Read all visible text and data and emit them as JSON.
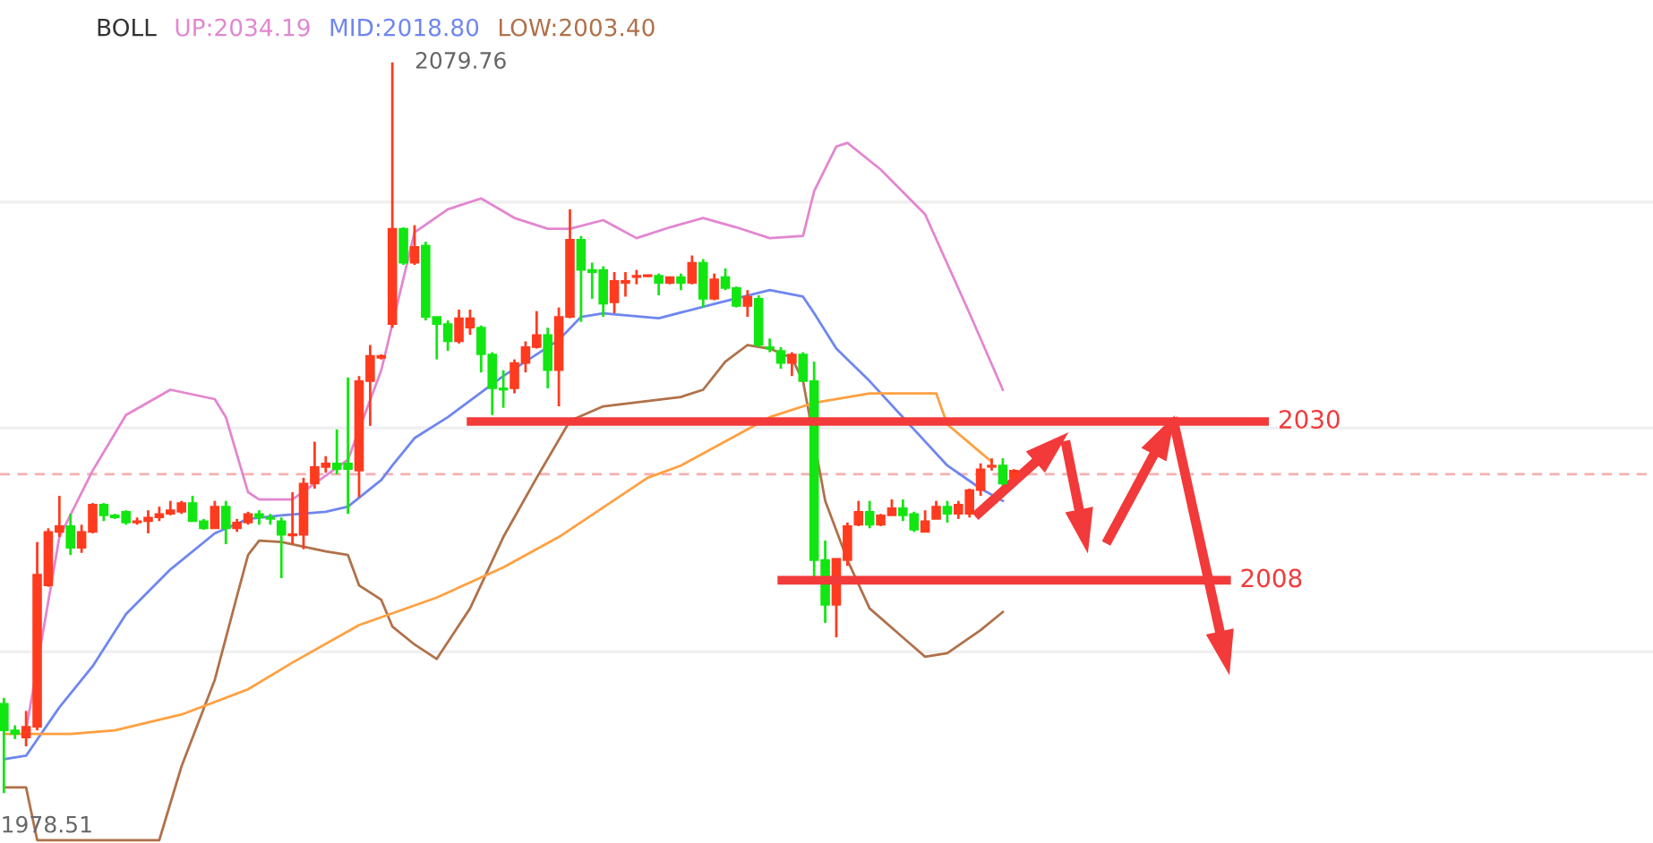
{
  "chart_data": {
    "type": "candlestick",
    "categories": [
      null,
      null,
      null,
      null,
      null,
      null,
      null,
      null,
      null,
      null,
      null,
      null,
      null,
      null,
      null,
      null,
      null,
      null,
      null,
      null,
      null,
      null,
      null,
      null,
      null,
      null,
      null,
      null,
      null,
      null,
      null,
      null,
      null,
      null,
      null,
      null,
      null,
      null,
      null,
      null,
      null,
      null,
      null,
      null,
      null,
      null,
      null,
      null,
      null,
      null,
      null,
      null,
      null,
      null,
      null,
      null,
      null,
      null,
      null,
      null,
      null,
      null,
      null,
      null,
      null,
      null,
      null,
      null,
      null,
      null,
      null,
      null,
      null,
      null,
      null,
      null,
      null,
      null,
      null,
      null,
      null,
      null,
      null,
      null,
      null,
      null,
      null,
      null,
      null,
      null,
      null,
      null
    ],
    "ohlc": [
      [
        1990.9,
        1991.7,
        1978.51,
        1987.2
      ],
      [
        1987.2,
        1987.9,
        1986.0,
        1986.7
      ],
      [
        1986.2,
        1989.9,
        1985.0,
        1987.7
      ],
      [
        1987.7,
        2013.3,
        1987.2,
        2008.8
      ],
      [
        2007.3,
        2015.2,
        2007.1,
        2014.7
      ],
      [
        2014.7,
        2019.7,
        2014.0,
        2015.5
      ],
      [
        2015.5,
        2017.2,
        2011.5,
        2012.5
      ],
      [
        2012.5,
        2015.7,
        2011.8,
        2014.7
      ],
      [
        2014.7,
        2018.7,
        2014.5,
        2018.5
      ],
      [
        2018.5,
        2018.7,
        2016.2,
        2017.0
      ],
      [
        2017.0,
        2017.2,
        2016.5,
        2016.7
      ],
      [
        2017.5,
        2017.7,
        2015.7,
        2016.0
      ],
      [
        2016.0,
        2016.7,
        2015.7,
        2016.2
      ],
      [
        2016.2,
        2017.7,
        2014.5,
        2016.7
      ],
      [
        2016.7,
        2018.2,
        2016.2,
        2017.2
      ],
      [
        2017.2,
        2019.0,
        2017.0,
        2017.7
      ],
      [
        2017.5,
        2019.0,
        2017.2,
        2018.7
      ],
      [
        2018.7,
        2019.7,
        2016.2,
        2016.2
      ],
      [
        2016.2,
        2016.5,
        2015.0,
        2015.2
      ],
      [
        2015.2,
        2019.0,
        2015.2,
        2018.2
      ],
      [
        2018.2,
        2019.0,
        2013.0,
        2015.2
      ],
      [
        2015.2,
        2016.5,
        2014.7,
        2016.0
      ],
      [
        2016.0,
        2017.5,
        2015.7,
        2017.2
      ],
      [
        2017.2,
        2017.7,
        2015.7,
        2016.7
      ],
      [
        2016.7,
        2017.2,
        2015.7,
        2016.5
      ],
      [
        2016.2,
        2016.7,
        2008.3,
        2014.3
      ],
      [
        2014.2,
        2020.2,
        2013.0,
        2014.4
      ],
      [
        2014.3,
        2022.2,
        2012.3,
        2021.4
      ],
      [
        2021.4,
        2027.2,
        2020.7,
        2023.7
      ],
      [
        2023.7,
        2025.2,
        2022.9,
        2024.2
      ],
      [
        2024.2,
        2028.9,
        2022.7,
        2023.4
      ],
      [
        2024.2,
        2036.1,
        2017.2,
        2023.4
      ],
      [
        2023.2,
        2036.3,
        2019.5,
        2035.6
      ],
      [
        2035.6,
        2040.6,
        2029.4,
        2039.1
      ],
      [
        2038.8,
        2039.3,
        2038.6,
        2039.1
      ],
      [
        2043.5,
        2079.76,
        2043.0,
        2056.7
      ],
      [
        2056.7,
        2056.9,
        2051.7,
        2052.0
      ],
      [
        2052.0,
        2057.2,
        2051.7,
        2054.2
      ],
      [
        2054.4,
        2054.9,
        2044.0,
        2044.5
      ],
      [
        2044.5,
        2044.5,
        2038.6,
        2043.5
      ],
      [
        2043.5,
        2044.0,
        2039.8,
        2041.1
      ],
      [
        2041.1,
        2045.5,
        2040.8,
        2044.3
      ],
      [
        2043.0,
        2045.5,
        2042.0,
        2044.3
      ],
      [
        2043.0,
        2043.3,
        2036.8,
        2039.3
      ],
      [
        2039.3,
        2039.6,
        2030.9,
        2034.6
      ],
      [
        2034.6,
        2037.1,
        2031.9,
        2034.4
      ],
      [
        2034.6,
        2038.6,
        2033.9,
        2038.1
      ],
      [
        2038.1,
        2041.1,
        2036.8,
        2040.3
      ],
      [
        2040.3,
        2045.3,
        2040.1,
        2042.0
      ],
      [
        2042.0,
        2043.0,
        2034.6,
        2037.1
      ],
      [
        2037.1,
        2045.8,
        2032.1,
        2044.5
      ],
      [
        2044.5,
        2059.4,
        2044.3,
        2055.2
      ],
      [
        2055.2,
        2055.7,
        2043.8,
        2051.0
      ],
      [
        2051.0,
        2052.0,
        2047.0,
        2050.7
      ],
      [
        2051.0,
        2051.5,
        2044.5,
        2046.3
      ],
      [
        2046.5,
        2050.7,
        2045.0,
        2049.5
      ],
      [
        2049.2,
        2050.7,
        2047.3,
        2049.5
      ],
      [
        2050.0,
        2051.0,
        2049.0,
        2050.2
      ],
      [
        2050.1,
        2050.3,
        2050.0,
        2050.3
      ],
      [
        2050.2,
        2050.5,
        2047.5,
        2049.2
      ],
      [
        2049.2,
        2050.0,
        2049.0,
        2050.0
      ],
      [
        2050.0,
        2050.5,
        2048.2,
        2049.2
      ],
      [
        2049.2,
        2053.0,
        2049.0,
        2052.0
      ],
      [
        2052.0,
        2052.5,
        2045.8,
        2047.0
      ],
      [
        2047.0,
        2050.5,
        2046.8,
        2049.7
      ],
      [
        2050.0,
        2051.2,
        2048.2,
        2048.5
      ],
      [
        2048.5,
        2048.7,
        2045.8,
        2046.0
      ],
      [
        2046.0,
        2048.2,
        2044.5,
        2047.3
      ],
      [
        2047.0,
        2047.5,
        2040.3,
        2040.6
      ],
      [
        2040.3,
        2041.5,
        2039.6,
        2040.1
      ],
      [
        2039.8,
        2040.3,
        2037.3,
        2038.1
      ],
      [
        2038.1,
        2039.6,
        2036.3,
        2039.3
      ],
      [
        2039.3,
        2039.6,
        2035.6,
        2035.6
      ],
      [
        2035.6,
        2038.3,
        2008.5,
        2010.8
      ],
      [
        2010.8,
        2013.5,
        2002.1,
        2004.6
      ],
      [
        2004.6,
        2011.0,
        2000.1,
        2011.0
      ],
      [
        2010.8,
        2016.0,
        2010.0,
        2015.5
      ],
      [
        2015.7,
        2019.0,
        2015.5,
        2017.5
      ],
      [
        2017.5,
        2019.0,
        2015.2,
        2015.7
      ],
      [
        2015.7,
        2017.2,
        2015.5,
        2017.0
      ],
      [
        2017.0,
        2019.2,
        2017.0,
        2018.0
      ],
      [
        2018.0,
        2019.2,
        2016.2,
        2017.0
      ],
      [
        2017.2,
        2017.5,
        2014.7,
        2015.0
      ],
      [
        2014.7,
        2017.7,
        2014.7,
        2016.2
      ],
      [
        2016.5,
        2019.0,
        2016.5,
        2018.2
      ],
      [
        2018.2,
        2019.0,
        2016.0,
        2017.2
      ],
      [
        2017.2,
        2019.0,
        2016.5,
        2018.5
      ],
      [
        2017.2,
        2020.7,
        2016.7,
        2020.5
      ],
      [
        2020.5,
        2024.2,
        2019.7,
        2023.4
      ],
      [
        2023.7,
        2024.9,
        2023.2,
        2023.9
      ],
      [
        2023.9,
        2024.9,
        2021.0,
        2021.4
      ],
      [
        2022.2,
        2023.4,
        2021.9,
        2023.2
      ]
    ],
    "colors": [
      "#12e612",
      "#12e612",
      "#ff3b1f",
      "#ff3b1f",
      "#ff3b1f",
      "#ff3b1f",
      "#12e612",
      "#ff3b1f",
      "#ff3b1f",
      "#12e612",
      "#12e612",
      "#12e612",
      "#ff3b1f",
      "#ff3b1f",
      "#ff3b1f",
      "#ff3b1f",
      "#ff3b1f",
      "#12e612",
      "#12e612",
      "#ff3b1f",
      "#12e612",
      "#ff3b1f",
      "#ff3b1f",
      "#12e612",
      "#12e612",
      "#12e612",
      "#ff3b1f",
      "#ff3b1f",
      "#ff3b1f",
      "#ff3b1f",
      "#12e612",
      "#12e612",
      "#ff3b1f",
      "#ff3b1f",
      "#ff3b1f",
      "#ff3b1f",
      "#12e612",
      "#ff3b1f",
      "#12e612",
      "#12e612",
      "#12e612",
      "#ff3b1f",
      "#ff3b1f",
      "#12e612",
      "#12e612",
      "#12e612",
      "#ff3b1f",
      "#ff3b1f",
      "#ff3b1f",
      "#12e612",
      "#ff3b1f",
      "#ff3b1f",
      "#12e612",
      "#12e612",
      "#12e612",
      "#ff3b1f",
      "#ff3b1f",
      "#ff3b1f",
      "#ff3b1f",
      "#12e612",
      "#ff3b1f",
      "#12e612",
      "#ff3b1f",
      "#12e612",
      "#ff3b1f",
      "#12e612",
      "#12e612",
      "#ff3b1f",
      "#12e612",
      "#12e612",
      "#12e612",
      "#ff3b1f",
      "#12e612",
      "#12e612",
      "#12e612",
      "#ff3b1f",
      "#ff3b1f",
      "#ff3b1f",
      "#12e612",
      "#ff3b1f",
      "#ff3b1f",
      "#12e612",
      "#12e612",
      "#ff3b1f",
      "#ff3b1f",
      "#12e612",
      "#ff3b1f",
      "#ff3b1f",
      "#ff3b1f",
      "#ff3b1f",
      "#12e612",
      "#ff3b1f"
    ],
    "series": [
      {
        "type": "line",
        "name": "UP:2034.19",
        "color": "#e386d0",
        "values": [
          null,
          null,
          1987.2,
          null,
          null,
          2014.0,
          null,
          null,
          2023.2,
          null,
          null,
          2030.9,
          null,
          null,
          null,
          2034.4,
          null,
          null,
          null,
          2033.1,
          2030.6,
          null,
          2020.2,
          2019.2,
          null,
          null,
          2019.2,
          null,
          2021.4,
          null,
          null,
          2024.7,
          null,
          null,
          2037.1,
          null,
          null,
          2056.2,
          null,
          null,
          2059.4,
          null,
          null,
          2060.9,
          null,
          null,
          2058.2,
          null,
          null,
          2056.7,
          null,
          2056.7,
          null,
          null,
          2057.9,
          null,
          null,
          2055.4,
          null,
          null,
          2056.9,
          null,
          null,
          2058.2,
          null,
          null,
          2056.9,
          null,
          null,
          2055.4,
          null,
          null,
          2055.7,
          2061.9,
          null,
          2068.1,
          2068.6,
          null,
          null,
          2064.9,
          null,
          null,
          null,
          2058.7,
          null,
          null,
          null,
          2045.0,
          null,
          null,
          2034.4,
          null
        ]
      },
      {
        "type": "line",
        "name": "MID:2018.80",
        "color": "#6f86f0",
        "values": [
          1983.2,
          null,
          1983.7,
          null,
          null,
          1990.4,
          null,
          null,
          1996.1,
          null,
          null,
          2003.3,
          null,
          null,
          null,
          2009.5,
          null,
          null,
          null,
          2014.5,
          null,
          null,
          2016.5,
          null,
          null,
          2017.0,
          null,
          null,
          null,
          2017.5,
          null,
          2018.2,
          null,
          null,
          2021.9,
          2023.9,
          null,
          2027.7,
          null,
          null,
          2030.6,
          null,
          null,
          null,
          null,
          2036.3,
          null,
          null,
          null,
          null,
          2041.3,
          null,
          2044.5,
          null,
          2045.0,
          null,
          null,
          null,
          null,
          2044.3,
          null,
          null,
          null,
          null,
          2046.3,
          null,
          null,
          null,
          null,
          2048.2,
          null,
          null,
          2047.3,
          2045.0,
          null,
          2040.1,
          null,
          null,
          2035.6,
          null,
          null,
          null,
          2028.9,
          null,
          null,
          2023.9,
          null,
          null,
          2020.7,
          null,
          2019.0,
          null
        ]
      },
      {
        "type": "line",
        "name": "LOW:2003.40",
        "color": "#b0714a",
        "values": [
          1979.3,
          null,
          1979.3,
          1972.0,
          null,
          null,
          null,
          null,
          null,
          null,
          null,
          null,
          null,
          null,
          1972.0,
          null,
          1982.2,
          null,
          null,
          1994.2,
          null,
          2005.8,
          2011.5,
          2013.5,
          null,
          2013.3,
          null,
          null,
          null,
          2012.0,
          null,
          2011.5,
          2007.3,
          null,
          2005.3,
          2001.6,
          null,
          1999.1,
          null,
          1997.1,
          null,
          null,
          2004.1,
          null,
          null,
          2014.0,
          null,
          null,
          2022.2,
          null,
          null,
          2030.1,
          null,
          null,
          2032.1,
          null,
          null,
          null,
          null,
          null,
          null,
          2033.4,
          null,
          2034.4,
          null,
          2038.3,
          null,
          2040.6,
          null,
          2040.1,
          null,
          2038.8,
          2035.6,
          null,
          2019.0,
          null,
          2010.8,
          null,
          2004.1,
          null,
          null,
          null,
          null,
          1997.4,
          null,
          1997.9,
          null,
          null,
          2001.1,
          null,
          2003.6,
          null
        ]
      },
      {
        "type": "line",
        "color": "#ffa040",
        "values": [
          1986.7,
          null,
          null,
          null,
          null,
          null,
          1986.7,
          null,
          null,
          null,
          1987.2,
          null,
          null,
          null,
          null,
          null,
          1989.4,
          null,
          null,
          null,
          null,
          null,
          1992.9,
          null,
          null,
          null,
          1996.6,
          null,
          null,
          null,
          null,
          null,
          2001.8,
          null,
          null,
          null,
          null,
          null,
          null,
          2005.6,
          null,
          null,
          null,
          null,
          null,
          2009.8,
          null,
          null,
          null,
          null,
          2014.0,
          null,
          null,
          null,
          null,
          null,
          null,
          null,
          2022.2,
          null,
          null,
          2023.9,
          null,
          null,
          null,
          null,
          null,
          null,
          null,
          2030.6,
          null,
          null,
          null,
          2032.6,
          null,
          null,
          null,
          null,
          2033.9,
          null,
          null,
          null,
          null,
          null,
          2033.9,
          2029.6,
          null,
          null,
          2025.7,
          2024.4,
          null,
          null
        ]
      }
    ],
    "ylim": [
      1971.6,
      2088.4
    ],
    "yticks": [
      {
        "value": 1998.1,
        "label": null
      },
      {
        "value": 2029.1,
        "label": null
      },
      {
        "value": 2060.4,
        "label": null
      }
    ],
    "grid": "y",
    "legend": "top",
    "line_style": "solid",
    "ref_lines": [
      {
        "axis": "y",
        "value": 2022.7,
        "color": "#f4b0b0",
        "line_style": "dashed"
      },
      {
        "axis": "y",
        "value": 2030,
        "label": "2030",
        "color": "#f23a3a",
        "line_style": "solid"
      },
      {
        "axis": "y",
        "value": 2008,
        "label": "2008",
        "color": "#f23a3a",
        "line_style": "solid"
      }
    ],
    "annotations": [
      "BOLL",
      "2079.76",
      "1978.51"
    ]
  }
}
